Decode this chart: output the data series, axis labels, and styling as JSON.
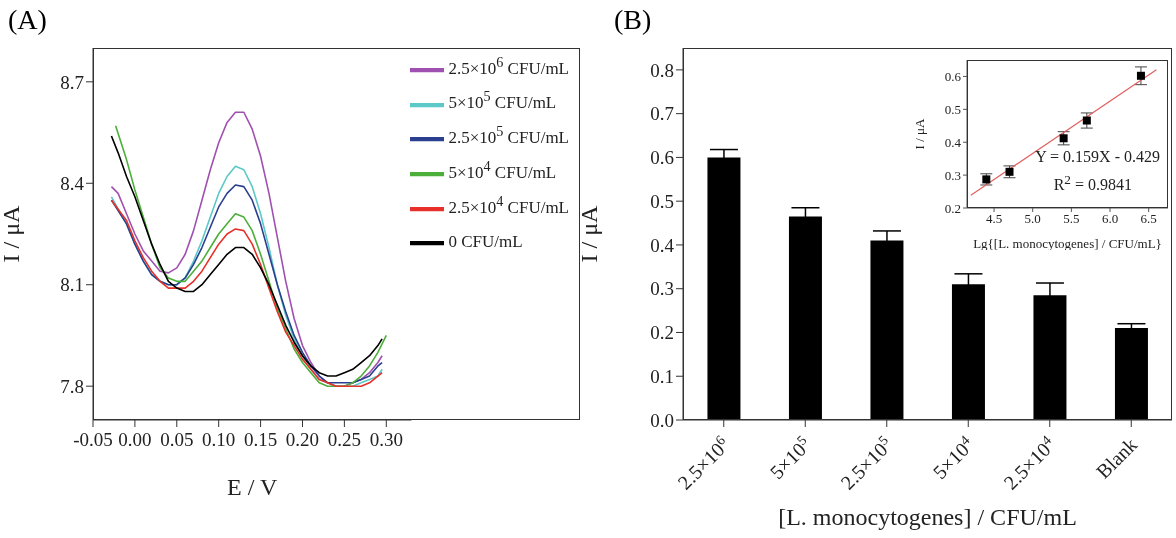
{
  "chart_data": [
    {
      "type": "line",
      "title": "(A)",
      "xlabel": "E / V",
      "ylabel": "I / μA",
      "legend": "top right",
      "grid": false,
      "marker": "none",
      "line_style": "solid",
      "xlim": [
        -0.05,
        0.33
      ],
      "xticks": [
        -0.05,
        {
          "value": 0,
          "label": "0.00"
        },
        0.05,
        {
          "value": 0.1,
          "label": "0.10"
        },
        0.15,
        {
          "value": 0.2,
          "label": "0.20"
        },
        0.25,
        {
          "value": 0.3,
          "label": "0.30"
        }
      ],
      "ylim": [
        7.7,
        8.8
      ],
      "yticks": [
        7.8,
        8.1,
        8.4,
        8.7
      ],
      "series": [
        {
          "name": "2.5×10$^{6}$ CFU/mL",
          "color": "#a050b0",
          "x": [
            -0.028,
            -0.02,
            -0.01,
            0,
            0.01,
            0.02,
            0.03,
            0.04,
            0.05,
            0.06,
            0.07,
            0.08,
            0.09,
            0.1,
            0.11,
            0.12,
            0.13,
            0.14,
            0.15,
            0.16,
            0.17,
            0.18,
            0.19,
            0.2,
            0.21,
            0.22,
            0.23,
            0.24,
            0.25,
            0.26,
            0.27,
            0.28,
            0.29,
            0.295
          ],
          "values": [
            8.39,
            8.37,
            8.31,
            8.25,
            8.2,
            8.17,
            8.14,
            8.135,
            8.15,
            8.19,
            8.26,
            8.35,
            8.44,
            8.52,
            8.58,
            8.61,
            8.61,
            8.56,
            8.48,
            8.37,
            8.24,
            8.11,
            8,
            7.92,
            7.87,
            7.83,
            7.81,
            7.8,
            7.8,
            7.81,
            7.82,
            7.84,
            7.87,
            7.89
          ]
        },
        {
          "name": "5×10$^{5}$ CFU/mL",
          "color": "#5cc8c8",
          "x": [
            -0.028,
            -0.01,
            0,
            0.01,
            0.02,
            0.03,
            0.04,
            0.05,
            0.06,
            0.07,
            0.08,
            0.09,
            0.1,
            0.11,
            0.12,
            0.13,
            0.14,
            0.15,
            0.16,
            0.17,
            0.18,
            0.19,
            0.2,
            0.21,
            0.22,
            0.23,
            0.24,
            0.25,
            0.26,
            0.27,
            0.28,
            0.29,
            0.295
          ],
          "values": [
            8.36,
            8.28,
            8.22,
            8.17,
            8.13,
            8.11,
            8.1,
            8.1,
            8.12,
            8.17,
            8.23,
            8.3,
            8.37,
            8.42,
            8.45,
            8.44,
            8.39,
            8.31,
            8.21,
            8.1,
            8.01,
            7.94,
            7.89,
            7.85,
            7.82,
            7.81,
            7.8,
            7.8,
            7.8,
            7.81,
            7.82,
            7.83,
            7.85
          ]
        },
        {
          "name": "2.5×10$^{5}$ CFU/mL",
          "color": "#2a3f8f",
          "x": [
            -0.028,
            -0.01,
            0,
            0.01,
            0.02,
            0.03,
            0.04,
            0.05,
            0.06,
            0.07,
            0.08,
            0.09,
            0.1,
            0.11,
            0.12,
            0.13,
            0.14,
            0.15,
            0.16,
            0.17,
            0.18,
            0.19,
            0.2,
            0.21,
            0.22,
            0.23,
            0.24,
            0.25,
            0.26,
            0.27,
            0.28,
            0.29,
            0.295
          ],
          "values": [
            8.35,
            8.28,
            8.22,
            8.17,
            8.13,
            8.11,
            8.1,
            8.1,
            8.12,
            8.16,
            8.21,
            8.27,
            8.33,
            8.37,
            8.395,
            8.39,
            8.35,
            8.28,
            8.19,
            8.1,
            8.02,
            7.95,
            7.9,
            7.86,
            7.83,
            7.81,
            7.81,
            7.81,
            7.81,
            7.82,
            7.83,
            7.86,
            7.87
          ]
        },
        {
          "name": "5×10$^{4}$ CFU/mL",
          "color": "#4caf3a",
          "x": [
            -0.023,
            -0.01,
            0,
            0.01,
            0.02,
            0.03,
            0.04,
            0.05,
            0.06,
            0.07,
            0.08,
            0.09,
            0.1,
            0.11,
            0.12,
            0.13,
            0.14,
            0.15,
            0.16,
            0.17,
            0.18,
            0.19,
            0.2,
            0.21,
            0.22,
            0.23,
            0.24,
            0.25,
            0.26,
            0.27,
            0.28,
            0.29,
            0.3
          ],
          "values": [
            8.57,
            8.47,
            8.38,
            8.3,
            8.22,
            8.15,
            8.12,
            8.11,
            8.11,
            8.14,
            8.17,
            8.21,
            8.25,
            8.28,
            8.31,
            8.3,
            8.26,
            8.19,
            8.11,
            8.03,
            7.97,
            7.91,
            7.87,
            7.84,
            7.81,
            7.8,
            7.8,
            7.8,
            7.81,
            7.83,
            7.86,
            7.9,
            7.95
          ]
        },
        {
          "name": "2.5×10$^{4}$ CFU/mL",
          "color": "#e8302a",
          "x": [
            -0.028,
            -0.01,
            0,
            0.01,
            0.02,
            0.03,
            0.04,
            0.05,
            0.06,
            0.07,
            0.08,
            0.09,
            0.1,
            0.11,
            0.12,
            0.13,
            0.14,
            0.15,
            0.16,
            0.17,
            0.18,
            0.19,
            0.2,
            0.21,
            0.22,
            0.23,
            0.24,
            0.25,
            0.26,
            0.27,
            0.28,
            0.29,
            0.295
          ],
          "values": [
            8.35,
            8.29,
            8.23,
            8.18,
            8.14,
            8.11,
            8.09,
            8.09,
            8.09,
            8.11,
            8.14,
            8.18,
            8.22,
            8.25,
            8.265,
            8.26,
            8.22,
            8.16,
            8.09,
            8.02,
            7.96,
            7.92,
            7.88,
            7.85,
            7.82,
            7.81,
            7.8,
            7.8,
            7.8,
            7.8,
            7.81,
            7.83,
            7.84
          ]
        },
        {
          "name": "0 CFU/mL",
          "color": "#000000",
          "x": [
            -0.028,
            -0.02,
            -0.01,
            0,
            0.01,
            0.02,
            0.03,
            0.04,
            0.05,
            0.06,
            0.07,
            0.08,
            0.09,
            0.1,
            0.11,
            0.12,
            0.13,
            0.14,
            0.15,
            0.16,
            0.17,
            0.18,
            0.19,
            0.2,
            0.21,
            0.22,
            0.23,
            0.24,
            0.25,
            0.26,
            0.27,
            0.28,
            0.29,
            0.295
          ],
          "values": [
            8.54,
            8.49,
            8.42,
            8.36,
            8.29,
            8.22,
            8.16,
            8.11,
            8.09,
            8.08,
            8.08,
            8.1,
            8.13,
            8.16,
            8.19,
            8.21,
            8.21,
            8.19,
            8.15,
            8.1,
            8.04,
            7.98,
            7.93,
            7.89,
            7.86,
            7.84,
            7.83,
            7.83,
            7.84,
            7.85,
            7.87,
            7.89,
            7.92,
            7.94
          ]
        }
      ]
    },
    {
      "type": "bar",
      "title": "(B)",
      "xlabel": "[L. monocytogenes] / CFU/mL",
      "ylabel": "I / μA",
      "grid": false,
      "categories": [
        "2.5×10$^{6}$",
        "5×10$^{5}$",
        "2.5×10$^{5}$",
        "5×10$^{4}$",
        "2.5×10$^{4}$",
        "Blank"
      ],
      "values": [
        0.6,
        0.465,
        0.41,
        0.31,
        0.285,
        0.21
      ],
      "errors": [
        0.018,
        0.02,
        0.022,
        0.024,
        0.028,
        0.01
      ],
      "color": "#000000",
      "ylim": [
        0,
        0.85
      ],
      "yticks": [
        {
          "value": 0,
          "label": "0.0"
        },
        0.1,
        0.2,
        0.3,
        0.4,
        0.5,
        0.6,
        0.7,
        0.8
      ]
    },
    {
      "type": "scatter",
      "xlabel": "Lg{[L. monocytogenes] / CFU/mL}",
      "ylabel": "I / μA",
      "grid": false,
      "xlim": [
        4.15,
        6.75
      ],
      "xticks": [
        4.5,
        {
          "value": 5,
          "label": "5.0"
        },
        5.5,
        {
          "value": 6,
          "label": "6.0"
        },
        6.5
      ],
      "ylim": [
        0.2,
        0.65
      ],
      "yticks": [
        0.2,
        0.3,
        0.4,
        0.5,
        0.6
      ],
      "annotations": [
        "Y = 0.159X - 0.429",
        "R$^{2}$ = 0.9841"
      ],
      "series": [
        {
          "type": "scatter",
          "marker": "square",
          "color": "#000000",
          "x": [
            4.4,
            4.7,
            5.4,
            5.7,
            6.4
          ],
          "values": [
            0.287,
            0.31,
            0.412,
            0.466,
            0.602
          ],
          "errors": [
            0.017,
            0.018,
            0.02,
            0.023,
            0.027
          ]
        },
        {
          "type": "line",
          "color": "#e06060",
          "x": [
            4.2,
            6.6
          ],
          "values": [
            0.239,
            0.62
          ]
        }
      ]
    }
  ]
}
